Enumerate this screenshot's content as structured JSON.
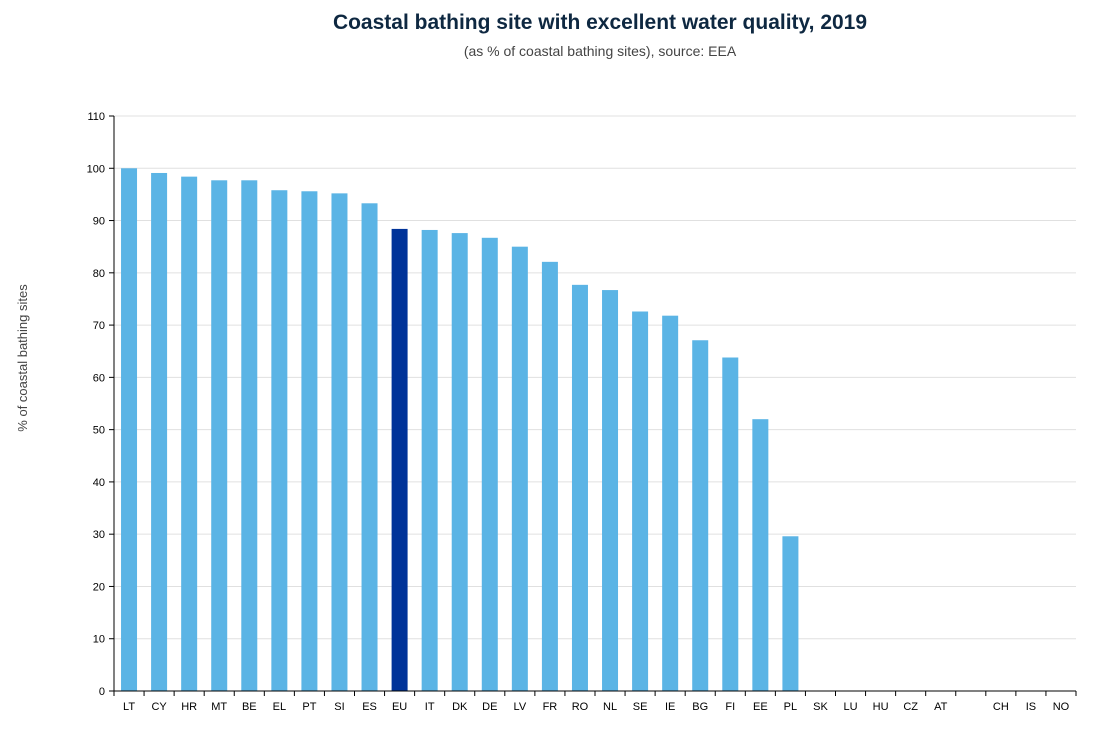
{
  "colors": {
    "bar": "#5bb4e5",
    "highlight": "#003399",
    "grid": "#e0e0e0",
    "axis": "#000000"
  },
  "chart_data": {
    "type": "bar",
    "title": "Coastal bathing site with excellent water quality, 2019",
    "subtitle": "(as % of coastal bathing sites), source: EEA",
    "ylabel": "% of coastal bathing sites",
    "xlabel": "",
    "ylim": [
      0,
      110
    ],
    "yticks": [
      0,
      10,
      20,
      30,
      40,
      50,
      60,
      70,
      80,
      90,
      100,
      110
    ],
    "grid": true,
    "highlight_category": "EU",
    "categories": [
      "LT",
      "CY",
      "HR",
      "MT",
      "BE",
      "EL",
      "PT",
      "SI",
      "ES",
      "EU",
      "IT",
      "DK",
      "DE",
      "LV",
      "FR",
      "RO",
      "NL",
      "SE",
      "IE",
      "BG",
      "FI",
      "EE",
      "PL",
      "SK",
      "LU",
      "HU",
      "CZ",
      "AT",
      "",
      "CH",
      "IS",
      "NO"
    ],
    "values": [
      100,
      99.1,
      98.4,
      97.7,
      97.7,
      95.8,
      95.6,
      95.2,
      93.3,
      88.4,
      88.2,
      87.6,
      86.7,
      85.0,
      82.1,
      77.7,
      76.7,
      72.6,
      71.8,
      67.1,
      63.8,
      52.0,
      29.6,
      null,
      null,
      null,
      null,
      null,
      null,
      null,
      null,
      null
    ]
  }
}
